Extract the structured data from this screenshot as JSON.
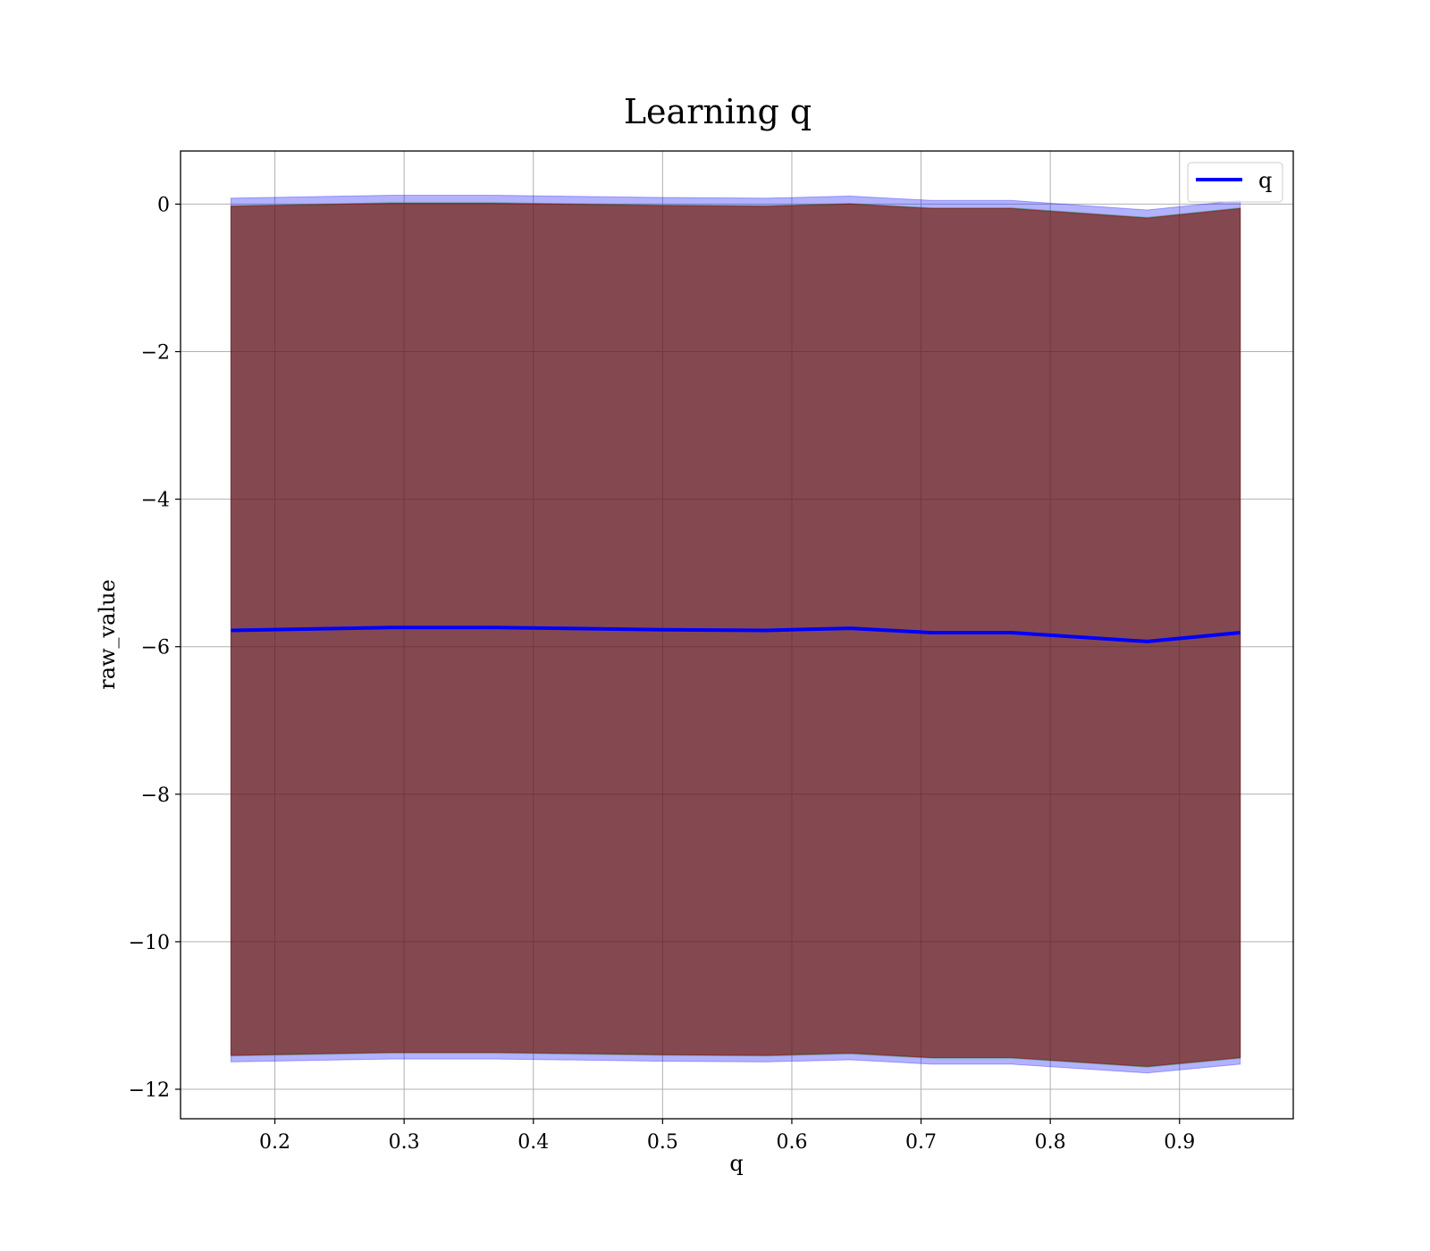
{
  "chart_data": {
    "type": "line",
    "title": "Learning q",
    "xlabel": "q",
    "ylabel": "raw_value",
    "xlim": [
      0.127,
      0.988
    ],
    "ylim": [
      -12.4,
      0.72
    ],
    "xticks": [
      0.2,
      0.3,
      0.4,
      0.5,
      0.6,
      0.7,
      0.8,
      0.9
    ],
    "xtick_labels": [
      "0.2",
      "0.3",
      "0.4",
      "0.5",
      "0.6",
      "0.7",
      "0.8",
      "0.9"
    ],
    "yticks": [
      0,
      -2,
      -4,
      -6,
      -8,
      -10,
      -12
    ],
    "ytick_labels": [
      "0",
      "−2",
      "−4",
      "−6",
      "−8",
      "−10",
      "−12"
    ],
    "grid": true,
    "legend_position": "top-right",
    "x": [
      0.166,
      0.29,
      0.37,
      0.5,
      0.58,
      0.645,
      0.708,
      0.77,
      0.875,
      0.947
    ],
    "series": [
      {
        "name": "q",
        "color": "#0000ff",
        "values": [
          -5.78,
          -5.74,
          -5.74,
          -5.77,
          -5.78,
          -5.75,
          -5.81,
          -5.81,
          -5.93,
          -5.81
        ]
      }
    ],
    "bands": [
      {
        "color": "#0000ff",
        "opacity": 0.3,
        "upper": [
          0.08,
          0.12,
          0.12,
          0.09,
          0.08,
          0.11,
          0.05,
          0.05,
          -0.08,
          0.05
        ],
        "lower": [
          -11.63,
          -11.59,
          -11.59,
          -11.62,
          -11.63,
          -11.6,
          -11.66,
          -11.66,
          -11.78,
          -11.66
        ]
      },
      {
        "color": "#008000",
        "opacity": 0.3,
        "upper": [
          -0.02,
          0.02,
          0.02,
          -0.01,
          -0.02,
          0.01,
          -0.05,
          -0.05,
          -0.18,
          -0.05
        ],
        "lower": [
          -11.55,
          -11.51,
          -11.51,
          -11.54,
          -11.55,
          -11.52,
          -11.58,
          -11.58,
          -11.7,
          -11.58
        ]
      },
      {
        "color": "#8b0000",
        "opacity": 0.55,
        "upper": [
          -0.03,
          0.01,
          0.01,
          -0.02,
          -0.03,
          0.0,
          -0.06,
          -0.06,
          -0.19,
          -0.06
        ],
        "lower": [
          -11.54,
          -11.5,
          -11.5,
          -11.53,
          -11.54,
          -11.51,
          -11.57,
          -11.57,
          -11.69,
          -11.57
        ]
      }
    ]
  }
}
